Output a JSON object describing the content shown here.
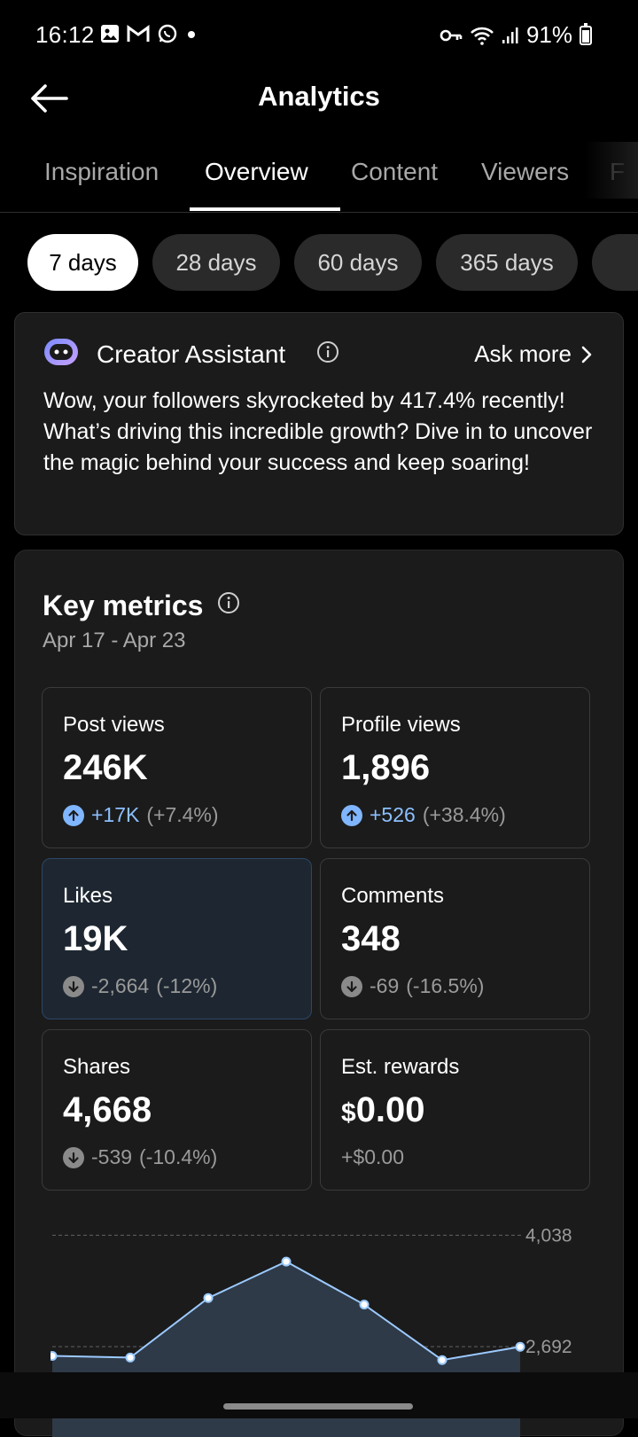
{
  "status_bar": {
    "time": "16:12",
    "left_icons": [
      "gallery-icon",
      "gmail-icon",
      "whatsapp-icon",
      "dot-icon"
    ],
    "right_icons": [
      "key-icon",
      "wifi-icon",
      "signal-icon"
    ],
    "battery": "91%"
  },
  "header": {
    "title": "Analytics",
    "back_icon": "back-arrow-icon"
  },
  "tabs": [
    {
      "label": "Inspiration",
      "active": false
    },
    {
      "label": "Overview",
      "active": true
    },
    {
      "label": "Content",
      "active": false
    },
    {
      "label": "Viewers",
      "active": false
    },
    {
      "label": "F",
      "active": false
    }
  ],
  "ranges": [
    {
      "label": "7 days",
      "active": true
    },
    {
      "label": "28 days",
      "active": false
    },
    {
      "label": "60 days",
      "active": false
    },
    {
      "label": "365 days",
      "active": false
    }
  ],
  "assistant": {
    "title": "Creator Assistant",
    "ask_more": "Ask more",
    "message": "Wow, your followers skyrocketed by 417.4% recently! What’s driving this incredible growth? Dive in to uncover the magic behind your success and keep soaring!"
  },
  "key_metrics": {
    "title": "Key metrics",
    "range": "Apr 17 - Apr 23",
    "tiles": [
      {
        "label": "Post views",
        "value": "246K",
        "direction": "up",
        "delta": "+17K",
        "pct": "(+7.4%)"
      },
      {
        "label": "Profile views",
        "value": "1,896",
        "direction": "up",
        "delta": "+526",
        "pct": "(+38.4%)"
      },
      {
        "label": "Likes",
        "value": "19K",
        "direction": "down",
        "delta": "-2,664",
        "pct": "(-12%)",
        "selected": true
      },
      {
        "label": "Comments",
        "value": "348",
        "direction": "down",
        "delta": "-69",
        "pct": "(-16.5%)"
      },
      {
        "label": "Shares",
        "value": "4,668",
        "direction": "down",
        "delta": "-539",
        "pct": "(-10.4%)"
      },
      {
        "label": "Est. rewards",
        "value_currency": "$",
        "value": "0.00",
        "direction": "none",
        "delta": "+$0.00",
        "pct": ""
      }
    ]
  },
  "chart_data": {
    "type": "area",
    "series": [
      {
        "values": [
          2580,
          2560,
          3280,
          3720,
          3200,
          2530,
          2690
        ]
      }
    ],
    "tick_labels": [
      "4,038",
      "2,692"
    ],
    "y_ticks": [
      4038,
      2692
    ],
    "ylim": [
      1600,
      4300
    ],
    "grid": true,
    "colors": {
      "line": "#9ccaff",
      "fill": "#2f3a48",
      "point": "#ffffff"
    }
  }
}
